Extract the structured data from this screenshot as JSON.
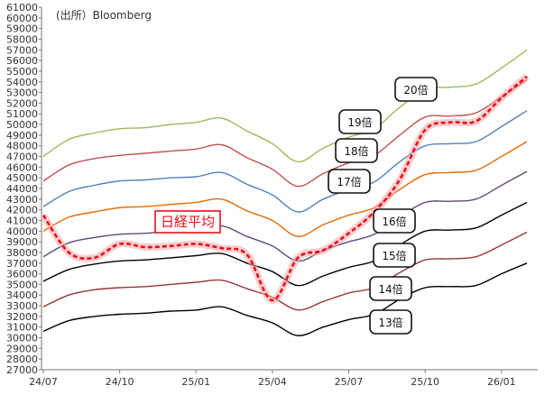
{
  "chart_data": {
    "type": "line",
    "title": "",
    "source": "(出所）Bloomberg",
    "xlabel": "",
    "ylabel": "",
    "ylim": [
      27000,
      61000
    ],
    "y_ticks": [
      27000,
      28000,
      29000,
      30000,
      31000,
      32000,
      33000,
      34000,
      35000,
      36000,
      37000,
      38000,
      39000,
      40000,
      41000,
      42000,
      43000,
      44000,
      45000,
      46000,
      47000,
      48000,
      49000,
      50000,
      51000,
      52000,
      53000,
      54000,
      55000,
      56000,
      57000,
      58000,
      59000,
      60000,
      61000
    ],
    "x_ticks": [
      "24/07",
      "24/10",
      "25/01",
      "25/04",
      "25/07",
      "25/10",
      "26/01"
    ],
    "x": [
      "24/07",
      "24/08",
      "24/09",
      "24/10",
      "24/11",
      "24/12",
      "25/01",
      "25/02",
      "25/03",
      "25/04",
      "25/05",
      "25/06",
      "25/07",
      "25/08",
      "25/09",
      "25/10",
      "25/11",
      "25/12",
      "26/01",
      "26/02"
    ],
    "series": [
      {
        "name": "日経平均",
        "color": "#e8101a",
        "values": [
          41500,
          38000,
          37500,
          38800,
          38500,
          38600,
          38800,
          38400,
          37800,
          33500,
          37500,
          38200,
          39800,
          41800,
          44800,
          49500,
          50200,
          50300,
          52500,
          54500
        ]
      },
      {
        "name": "20倍",
        "color": "#9bbb59",
        "values": [
          47000,
          48600,
          49200,
          49600,
          49700,
          50000,
          50200,
          50600,
          49400,
          48200,
          46500,
          47800,
          48800,
          49600,
          51600,
          53300,
          53500,
          53800,
          55300,
          57000
        ]
      },
      {
        "name": "19倍",
        "color": "#c0504d",
        "values": [
          44700,
          46200,
          46800,
          47100,
          47300,
          47500,
          47700,
          48100,
          46900,
          45800,
          44200,
          45400,
          46400,
          47100,
          49000,
          50700,
          50800,
          51100,
          52600,
          54200
        ]
      },
      {
        "name": "18倍",
        "color": "#4f81bd",
        "values": [
          42300,
          43700,
          44300,
          44700,
          44800,
          45000,
          45100,
          45500,
          44400,
          43400,
          41800,
          43000,
          43900,
          44600,
          46500,
          48000,
          48200,
          48400,
          49800,
          51300
        ]
      },
      {
        "name": "17倍",
        "color": "#e46c0a",
        "values": [
          40000,
          41300,
          41800,
          42200,
          42300,
          42500,
          42700,
          43000,
          41900,
          41000,
          39500,
          40600,
          41500,
          42200,
          43900,
          45300,
          45500,
          45700,
          47000,
          48400
        ]
      },
      {
        "name": "16倍",
        "color": "#604a7b",
        "values": [
          37600,
          38900,
          39400,
          39700,
          39800,
          40000,
          40100,
          40500,
          39500,
          38600,
          37200,
          38200,
          39000,
          39700,
          41300,
          42700,
          42800,
          43000,
          44300,
          45600
        ]
      },
      {
        "name": "15倍",
        "color": "#000000",
        "values": [
          35300,
          36400,
          36900,
          37200,
          37300,
          37500,
          37700,
          37900,
          37000,
          36200,
          34900,
          35800,
          36600,
          37200,
          38700,
          40000,
          40100,
          40300,
          41500,
          42700
        ]
      },
      {
        "name": "14倍",
        "color": "#953735",
        "values": [
          32900,
          34000,
          34500,
          34700,
          34800,
          35000,
          35200,
          35400,
          34600,
          33800,
          32600,
          33400,
          34200,
          34700,
          36100,
          37300,
          37400,
          37600,
          38700,
          39900
        ]
      },
      {
        "name": "13倍",
        "color": "#000000",
        "values": [
          30600,
          31600,
          32000,
          32200,
          32300,
          32500,
          32600,
          32900,
          32100,
          31400,
          30200,
          31000,
          31700,
          32200,
          33600,
          34700,
          34800,
          34900,
          36000,
          37000
        ]
      }
    ],
    "annotations": [
      "日経平均",
      "20倍",
      "19倍",
      "18倍",
      "17倍",
      "16倍",
      "15倍",
      "14倍",
      "13倍"
    ]
  }
}
